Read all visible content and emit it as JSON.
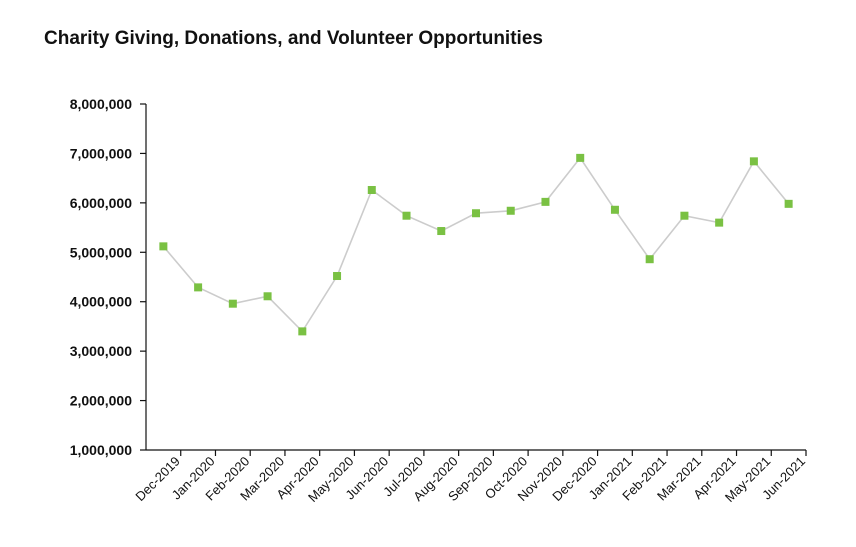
{
  "chart_data": {
    "type": "line",
    "title": "Charity Giving, Donations, and Volunteer Opportunities",
    "xlabel": "",
    "ylabel": "",
    "ylim": [
      1000000,
      8000000
    ],
    "yticks": [
      "1,000,000",
      "2,000,000",
      "3,000,000",
      "4,000,000",
      "5,000,000",
      "6,000,000",
      "7,000,000",
      "8,000,000"
    ],
    "ytick_values": [
      1000000,
      2000000,
      3000000,
      4000000,
      5000000,
      6000000,
      7000000,
      8000000
    ],
    "categories": [
      "Dec-2019",
      "Jan-2020",
      "Feb-2020",
      "Mar-2020",
      "Apr-2020",
      "May-2020",
      "Jun-2020",
      "Jul-2020",
      "Aug-2020",
      "Sep-2020",
      "Oct-2020",
      "Nov-2020",
      "Dec-2020",
      "Jan-2021",
      "Feb-2021",
      "Mar-2021",
      "Apr-2021",
      "May-2021",
      "Jun-2021"
    ],
    "series": [
      {
        "values": [
          5120000,
          4290000,
          3960000,
          4110000,
          3400000,
          4520000,
          6260000,
          5740000,
          5430000,
          5790000,
          5840000,
          6020000,
          6910000,
          5860000,
          4860000,
          5740000,
          5600000,
          6840000,
          5980000
        ]
      }
    ],
    "grid": false,
    "line_color": "#cccccc",
    "marker_color": "#7ac143"
  }
}
